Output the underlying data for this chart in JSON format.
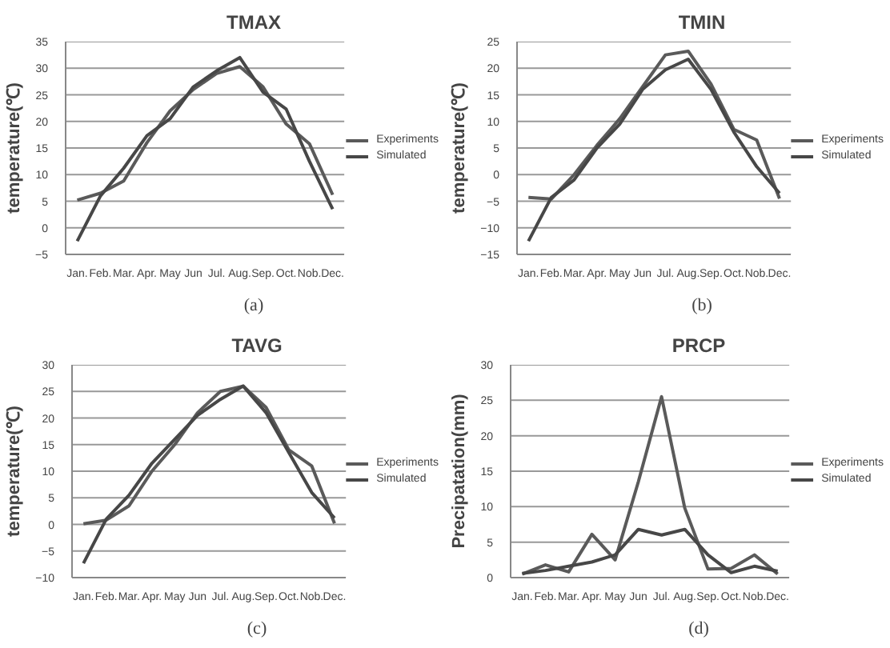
{
  "chart_data": [
    {
      "type": "line",
      "title": "TMAX",
      "ylabel": "temperature(℃)",
      "annotations": [
        "(a)"
      ],
      "categories": [
        "Jan.",
        "Feb.",
        "Mar.",
        "Apr.",
        "May",
        "Jun",
        "Jul.",
        "Aug.",
        "Sep.",
        "Oct.",
        "Nob.",
        "Dec."
      ],
      "series": [
        {
          "name": "Experiments",
          "color": "#5a5a5a",
          "values": [
            5.2,
            6.5,
            8.8,
            16,
            22,
            26,
            29,
            30.3,
            26.5,
            19.5,
            15.8,
            6.2
          ]
        },
        {
          "name": "Simulated",
          "color": "#474747",
          "values": [
            -2.5,
            6,
            11.2,
            17.3,
            20.5,
            26.5,
            29.5,
            32,
            25.5,
            22.3,
            12.5,
            3.5
          ]
        }
      ],
      "ylim": [
        -5,
        35
      ],
      "yticks": [
        -5,
        0,
        5,
        10,
        15,
        20,
        25,
        30,
        35
      ],
      "grid": "y",
      "legend": "right"
    },
    {
      "type": "line",
      "title": "TMIN",
      "ylabel": "temperature(℃)",
      "annotations": [
        "(b)"
      ],
      "categories": [
        "Jan.",
        "Feb.",
        "Mar.",
        "Apr.",
        "May",
        "Jun",
        "Jul.",
        "Aug.",
        "Sep.",
        "Oct.",
        "Nob.",
        "Dec."
      ],
      "series": [
        {
          "name": "Experiments",
          "color": "#5a5a5a",
          "values": [
            -4.3,
            -4.6,
            0,
            5.5,
            10.5,
            16.5,
            22.5,
            23.2,
            17,
            8.5,
            6.5,
            -4.5
          ]
        },
        {
          "name": "Simulated",
          "color": "#474747",
          "values": [
            -12.5,
            -4.3,
            -1,
            5,
            9.5,
            16,
            19.7,
            21.7,
            16,
            8,
            1.5,
            -3.5
          ]
        }
      ],
      "ylim": [
        -15,
        25
      ],
      "yticks": [
        -15,
        -10,
        -5,
        0,
        5,
        10,
        15,
        20,
        25
      ],
      "grid": "y",
      "legend": "right"
    },
    {
      "type": "line",
      "title": "TAVG",
      "ylabel": "temperature(℃)",
      "annotations": [
        "(c)"
      ],
      "categories": [
        "Jan.",
        "Feb.",
        "Mar.",
        "Apr.",
        "May",
        "Jun",
        "Jul.",
        "Aug.",
        "Sep.",
        "Oct.",
        "Nob.",
        "Dec."
      ],
      "series": [
        {
          "name": "Experiments",
          "color": "#5a5a5a",
          "values": [
            0.1,
            0.8,
            3.5,
            10,
            15,
            21,
            25,
            26,
            22,
            14,
            11,
            0.2
          ]
        },
        {
          "name": "Simulated",
          "color": "#474747",
          "values": [
            -7.3,
            1,
            5.5,
            11.5,
            16,
            20.5,
            23.5,
            26,
            21,
            13.5,
            6,
            1.2
          ]
        }
      ],
      "ylim": [
        -10,
        30
      ],
      "yticks": [
        -10,
        -5,
        0,
        5,
        10,
        15,
        20,
        25,
        30
      ],
      "grid": "y",
      "legend": "right"
    },
    {
      "type": "line",
      "title": "PRCP",
      "ylabel": "Precipatation(mm)",
      "annotations": [
        "(d)"
      ],
      "categories": [
        "Jan.",
        "Feb.",
        "Mar.",
        "Apr.",
        "May",
        "Jun",
        "Jul.",
        "Aug.",
        "Sep.",
        "Oct.",
        "Nob.",
        "Dec."
      ],
      "series": [
        {
          "name": "Experiments",
          "color": "#5a5a5a",
          "values": [
            0.5,
            1.8,
            0.8,
            6.1,
            2.5,
            13.5,
            25.5,
            9.8,
            1.2,
            1.3,
            3.2,
            0.5
          ]
        },
        {
          "name": "Simulated",
          "color": "#474747",
          "values": [
            0.6,
            1.0,
            1.6,
            2.2,
            3.2,
            6.8,
            6.0,
            6.8,
            3.2,
            0.7,
            1.6,
            0.9
          ]
        }
      ],
      "ylim": [
        0,
        30
      ],
      "yticks": [
        0,
        5,
        10,
        15,
        20,
        25,
        30
      ],
      "grid": "y",
      "legend": "right"
    }
  ]
}
